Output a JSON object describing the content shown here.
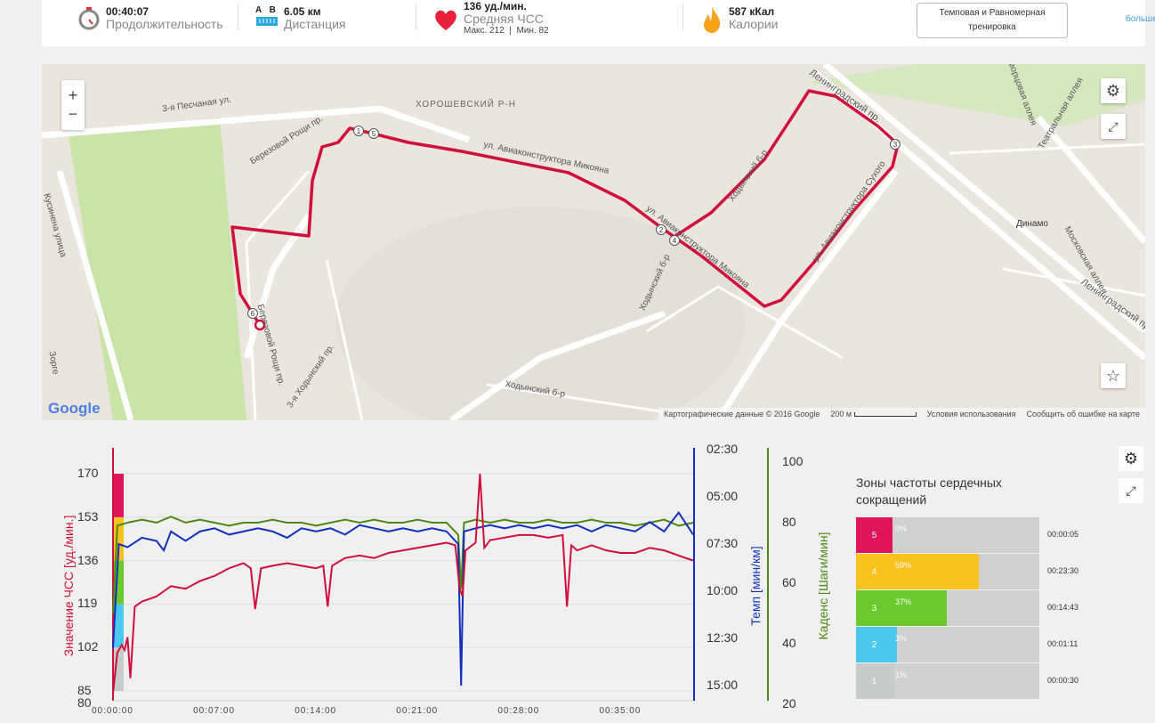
{
  "header": {
    "duration": {
      "value": "00:40:07",
      "label": "Продолжительность",
      "icon": "stopwatch-icon"
    },
    "distance": {
      "a": "A",
      "b": "B",
      "value": "6.05 км",
      "label": "Дистанция",
      "icon": "ruler-icon"
    },
    "heart": {
      "value": "136 уд./мин.",
      "label": "Средняя ЧСС",
      "max": "Макс. 212",
      "min": "Мин. 82",
      "icon": "heart-icon"
    },
    "calories": {
      "value": "587 кКал",
      "label": "Калории",
      "icon": "flame-icon"
    },
    "workout_type": "Темповая и Равномерная тренировка",
    "more": "больше"
  },
  "map": {
    "labels": [
      "3-я Песчаная ул.",
      "ХОРОШЕВСКИЙ Р-Н",
      "Березовой Рощи пр.",
      "ул. Авиаконструктора Микояна",
      "ул. Авиаконструктора Микояна",
      "Ходынский б-р",
      "Ходынский б-р",
      "Ходынский б-р",
      "3-я Ходынский пр.",
      "Ленинградский пр.",
      "Ленинградский пр.",
      "Динамо",
      "Московская аллея",
      "Театральная аллея",
      "Дворцовая аллея",
      "ул. Авиаконструктора Сухого",
      "Кусинена улица",
      "Зорге",
      "Березовой Рощи пр."
    ],
    "markers": [
      "1",
      "5",
      "2",
      "4",
      "3",
      "6"
    ],
    "attribution": "Картографические данные © 2016 Google",
    "scale": "200 м",
    "terms": "Условия использования",
    "report": "Сообщить об ошибке на карте",
    "logo": "Google",
    "zoom_in": "+",
    "zoom_out": "−"
  },
  "chart_data": {
    "type": "line",
    "x_ticks": [
      "00:00:00",
      "00:07:00",
      "00:14:00",
      "00:21:00",
      "00:28:00",
      "00:35:00"
    ],
    "y_left": {
      "label": "Значение ЧСС [уд./мин.]",
      "ticks": [
        "170",
        "153",
        "136",
        "119",
        "102",
        "85",
        "80"
      ],
      "color": "#d0103a"
    },
    "y_pace": {
      "label": "Темп [мин/км]",
      "ticks": [
        "02:30",
        "05:00",
        "07:30",
        "10:00",
        "12:30",
        "15:00"
      ],
      "color": "#1030c0"
    },
    "y_cadence": {
      "label": "Каденс [Шаги/мин]",
      "ticks": [
        "100",
        "80",
        "60",
        "40",
        "20"
      ],
      "color": "#4a8a10"
    },
    "zone_colors": [
      "#c6cbcb",
      "#4cc8ef",
      "#6ac92d",
      "#f9c21f",
      "#e0145a"
    ],
    "heart_rate": [
      [
        0,
        84
      ],
      [
        0.3,
        100
      ],
      [
        0.6,
        103
      ],
      [
        0.8,
        101
      ],
      [
        1,
        106
      ],
      [
        1.2,
        90
      ],
      [
        1.5,
        118
      ],
      [
        2,
        120
      ],
      [
        3,
        122
      ],
      [
        4,
        126
      ],
      [
        5,
        125
      ],
      [
        6,
        128
      ],
      [
        7,
        130
      ],
      [
        8,
        133
      ],
      [
        9,
        135
      ],
      [
        9.5,
        133
      ],
      [
        9.8,
        117
      ],
      [
        10.2,
        133
      ],
      [
        11,
        134
      ],
      [
        12,
        135
      ],
      [
        13,
        134
      ],
      [
        14,
        133
      ],
      [
        14.5,
        134
      ],
      [
        14.8,
        118
      ],
      [
        15.1,
        134
      ],
      [
        16,
        137
      ],
      [
        17,
        138
      ],
      [
        18,
        137
      ],
      [
        19,
        139
      ],
      [
        20,
        140
      ],
      [
        21,
        141
      ],
      [
        22,
        142
      ],
      [
        23,
        143
      ],
      [
        23.6,
        142
      ],
      [
        23.9,
        125
      ],
      [
        24.1,
        122
      ],
      [
        24.3,
        140
      ],
      [
        25,
        143
      ],
      [
        25.3,
        170
      ],
      [
        25.6,
        141
      ],
      [
        26,
        144
      ],
      [
        27,
        145
      ],
      [
        28,
        146
      ],
      [
        29,
        146
      ],
      [
        30,
        145
      ],
      [
        31,
        146
      ],
      [
        31.3,
        118
      ],
      [
        31.6,
        142
      ],
      [
        32,
        140
      ],
      [
        33,
        142
      ],
      [
        34,
        140
      ],
      [
        35,
        139
      ],
      [
        36,
        139
      ],
      [
        37,
        141
      ],
      [
        38,
        140
      ],
      [
        39,
        138
      ],
      [
        40,
        136
      ]
    ],
    "pace": [
      [
        0,
        "13:00"
      ],
      [
        0.4,
        "07:30"
      ],
      [
        1,
        "07:40"
      ],
      [
        2,
        "07:10"
      ],
      [
        3,
        "07:20"
      ],
      [
        3.5,
        "07:50"
      ],
      [
        4,
        "06:50"
      ],
      [
        5,
        "07:20"
      ],
      [
        6,
        "06:50"
      ],
      [
        7,
        "06:40"
      ],
      [
        8,
        "07:00"
      ],
      [
        9,
        "06:50"
      ],
      [
        10,
        "06:40"
      ],
      [
        11,
        "06:50"
      ],
      [
        12,
        "07:10"
      ],
      [
        13,
        "06:40"
      ],
      [
        14,
        "06:50"
      ],
      [
        15,
        "06:40"
      ],
      [
        16,
        "07:00"
      ],
      [
        17,
        "06:30"
      ],
      [
        18,
        "06:40"
      ],
      [
        19,
        "06:50"
      ],
      [
        20,
        "06:40"
      ],
      [
        21,
        "06:50"
      ],
      [
        22,
        "06:40"
      ],
      [
        23,
        "06:50"
      ],
      [
        23.8,
        "07:30"
      ],
      [
        24,
        "15:00"
      ],
      [
        24.2,
        "06:50"
      ],
      [
        25,
        "06:40"
      ],
      [
        26,
        "06:30"
      ],
      [
        27,
        "06:40"
      ],
      [
        28,
        "06:30"
      ],
      [
        29,
        "06:40"
      ],
      [
        30,
        "06:30"
      ],
      [
        31,
        "06:40"
      ],
      [
        32,
        "06:30"
      ],
      [
        33,
        "06:50"
      ],
      [
        34,
        "06:30"
      ],
      [
        35,
        "06:40"
      ],
      [
        36,
        "06:50"
      ],
      [
        37,
        "06:20"
      ],
      [
        38,
        "06:50"
      ],
      [
        39,
        "05:50"
      ],
      [
        40,
        "07:00"
      ]
    ],
    "cadence": [
      [
        0,
        50
      ],
      [
        0.3,
        79
      ],
      [
        1,
        80
      ],
      [
        2,
        81
      ],
      [
        3,
        80
      ],
      [
        4,
        82
      ],
      [
        5,
        80
      ],
      [
        6,
        81
      ],
      [
        7,
        80
      ],
      [
        8,
        79
      ],
      [
        9,
        80
      ],
      [
        10,
        80
      ],
      [
        11,
        81
      ],
      [
        12,
        80
      ],
      [
        13,
        80
      ],
      [
        14,
        79
      ],
      [
        15,
        80
      ],
      [
        16,
        81
      ],
      [
        17,
        80
      ],
      [
        18,
        81
      ],
      [
        19,
        80
      ],
      [
        20,
        80
      ],
      [
        21,
        81
      ],
      [
        22,
        80
      ],
      [
        23,
        80
      ],
      [
        23.8,
        76
      ],
      [
        24,
        58
      ],
      [
        24.2,
        80
      ],
      [
        25,
        81
      ],
      [
        26,
        80
      ],
      [
        27,
        81
      ],
      [
        28,
        80
      ],
      [
        29,
        80
      ],
      [
        30,
        81
      ],
      [
        31,
        80
      ],
      [
        32,
        80
      ],
      [
        33,
        81
      ],
      [
        34,
        80
      ],
      [
        35,
        80
      ],
      [
        36,
        79
      ],
      [
        37,
        80
      ],
      [
        38,
        81
      ],
      [
        39,
        79
      ],
      [
        40,
        80
      ]
    ]
  },
  "zones": {
    "title": "Зоны частоты сердечных сокращений",
    "rows": [
      {
        "zone": "5",
        "percent": "0%",
        "fraction": 0,
        "time": "00:00:05",
        "color": "#e0145a"
      },
      {
        "zone": "4",
        "percent": "59%",
        "fraction": 0.59,
        "time": "00:23:30",
        "color": "#f9c21f"
      },
      {
        "zone": "3",
        "percent": "37%",
        "fraction": 0.37,
        "time": "00:14:43",
        "color": "#6ac92d"
      },
      {
        "zone": "2",
        "percent": "3%",
        "fraction": 0.03,
        "time": "00:01:11",
        "color": "#4cc8ef"
      },
      {
        "zone": "1",
        "percent": "1%",
        "fraction": 0.01,
        "time": "00:00:30",
        "color": "#c6cbcb"
      }
    ]
  }
}
